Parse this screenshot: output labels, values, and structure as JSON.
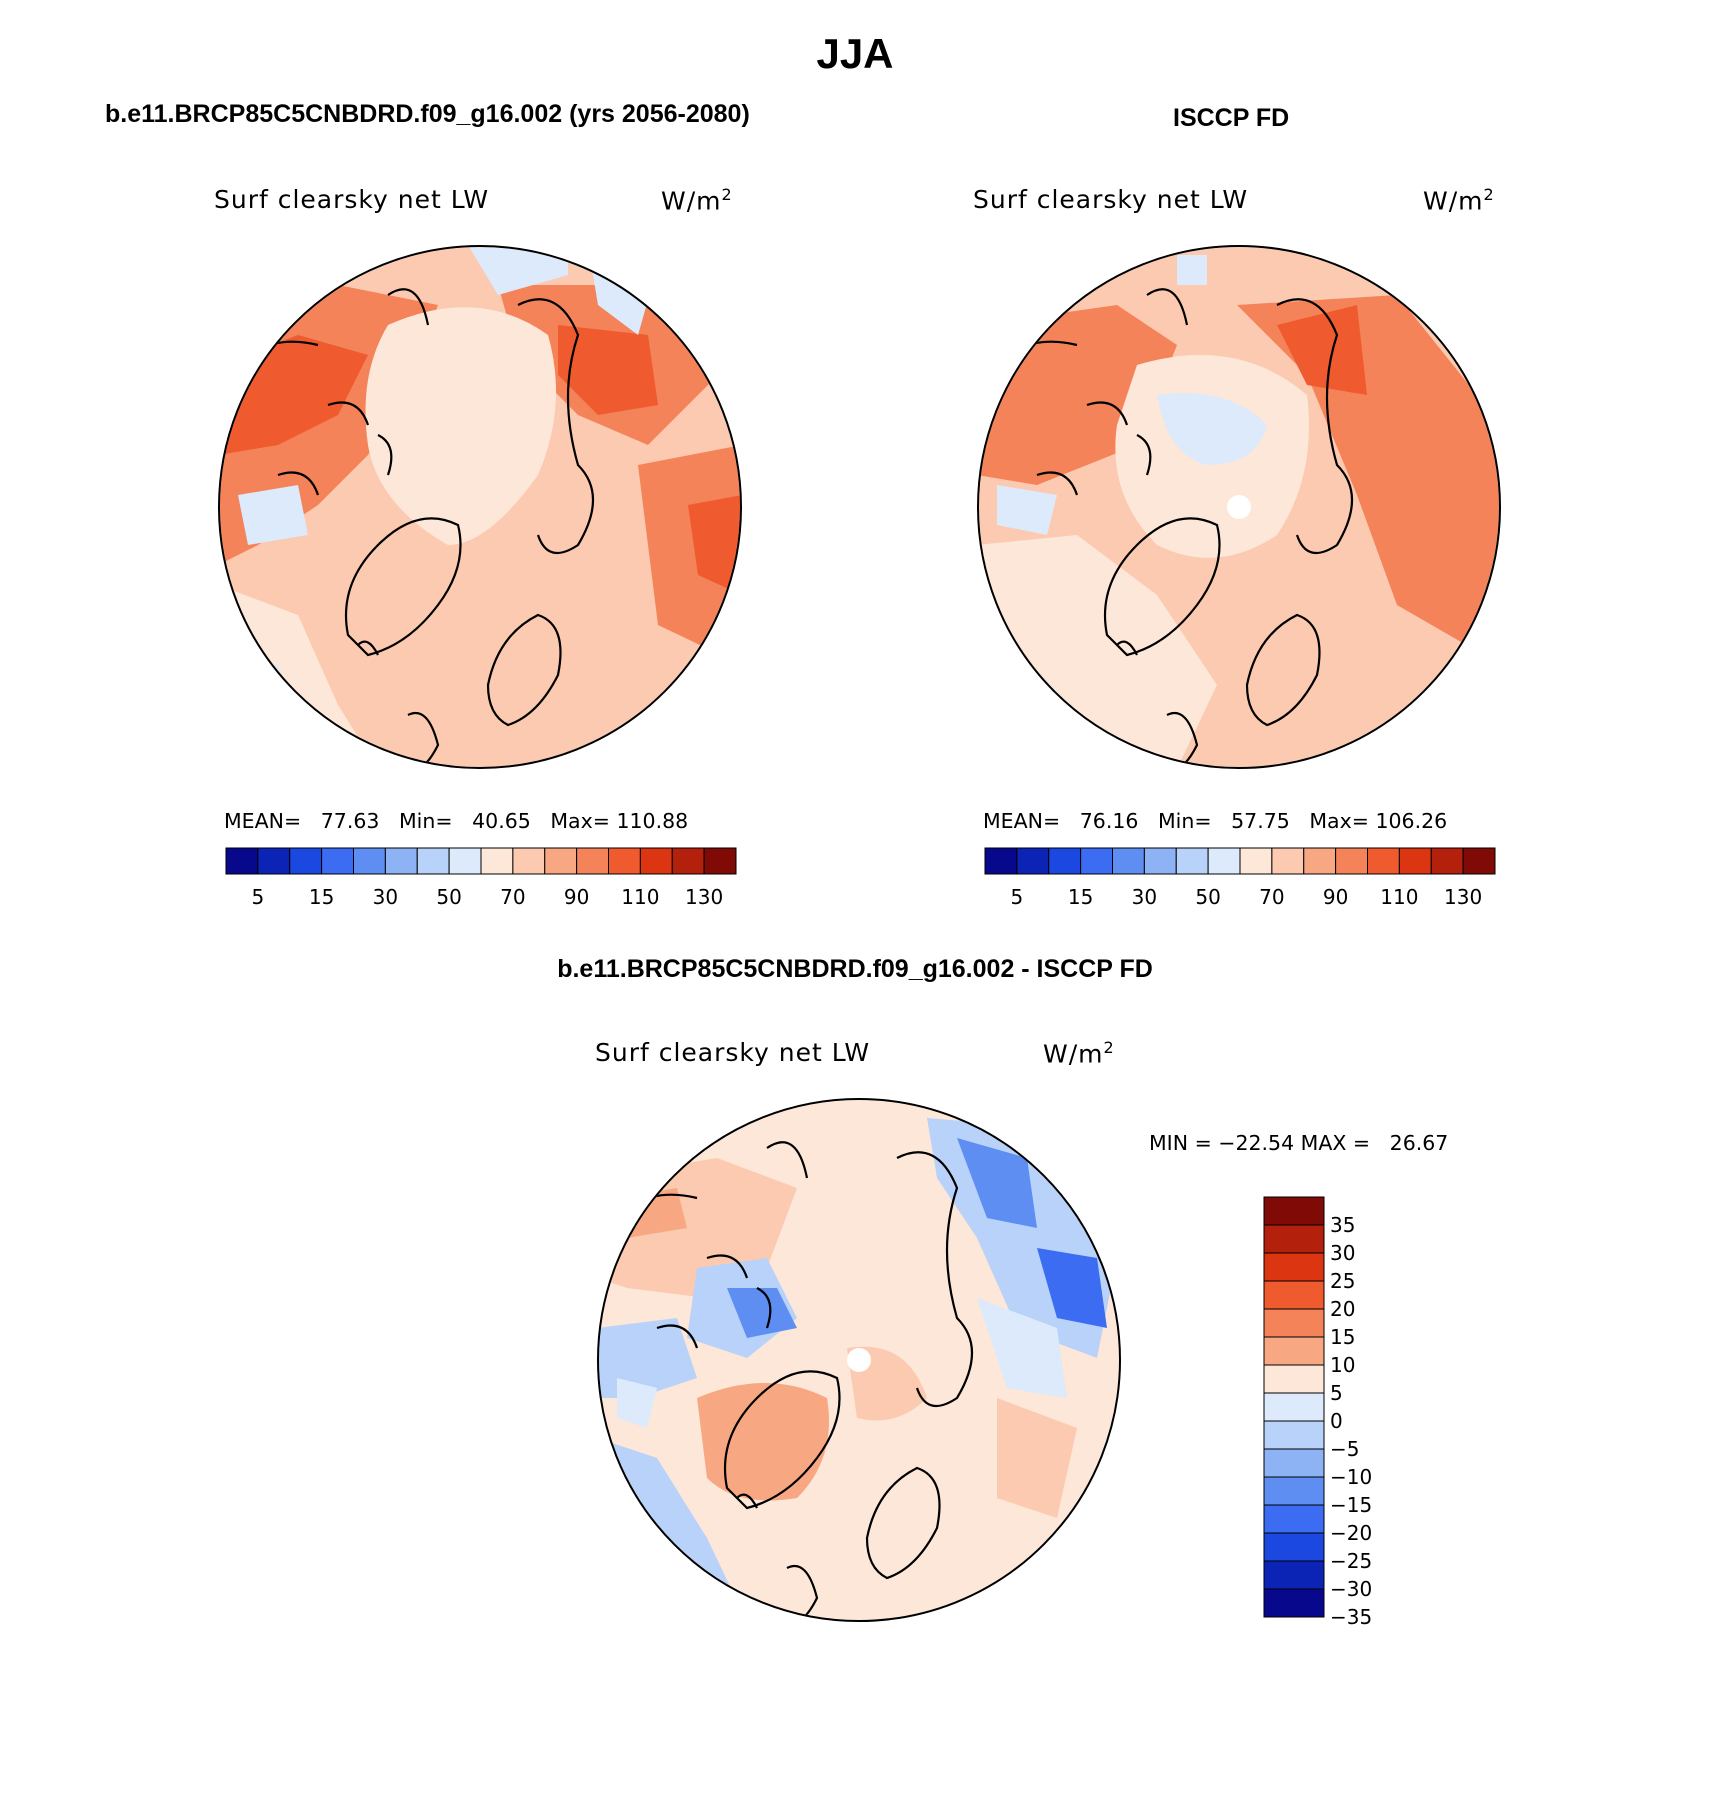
{
  "figure": {
    "season": "JJA",
    "panels": [
      {
        "id": "model",
        "title": "b.e11.BRCP85C5CNBDRD.f09_g16.002 (yrs 2056-2080)",
        "variable": "Surf clearsky net LW",
        "units": "W/m",
        "units_sup": "2",
        "mean_label": "MEAN=",
        "mean": "77.63",
        "min_label": "Min=",
        "min": "40.65",
        "max_label": "Max=",
        "max": "110.88",
        "colorbar_ticks": [
          "5",
          "15",
          "30",
          "50",
          "70",
          "90",
          "110",
          "130"
        ]
      },
      {
        "id": "obs",
        "title": "ISCCP FD",
        "variable": "Surf clearsky net LW",
        "units": "W/m",
        "units_sup": "2",
        "mean_label": "MEAN=",
        "mean": "76.16",
        "min_label": "Min=",
        "min": "57.75",
        "max_label": "Max=",
        "max": "106.26",
        "colorbar_ticks": [
          "5",
          "15",
          "30",
          "50",
          "70",
          "90",
          "110",
          "130"
        ]
      },
      {
        "id": "diff",
        "title": "b.e11.BRCP85C5CNBDRD.f09_g16.002 - ISCCP FD",
        "variable": "Surf clearsky net LW",
        "units": "W/m",
        "units_sup": "2",
        "minmax_text": "MIN = −22.54 MAX =   26.67",
        "colorbar_ticks": [
          "35",
          "30",
          "25",
          "20",
          "15",
          "10",
          "5",
          "0",
          "−5",
          "−10",
          "−15",
          "−20",
          "−25",
          "−30",
          "−35"
        ]
      }
    ]
  },
  "colors": {
    "abs_scale": [
      "#08088c",
      "#0b24b5",
      "#1a48e0",
      "#3b6cf2",
      "#5e8ef2",
      "#8db3f5",
      "#b9d2fa",
      "#dceafb",
      "#fde7d9",
      "#fbcab0",
      "#f7a883",
      "#f4835a",
      "#ef5a2e",
      "#db3512",
      "#b3200c",
      "#800b06"
    ],
    "diff_scale": [
      "#800b06",
      "#b3200c",
      "#db3512",
      "#ef5a2e",
      "#f4835a",
      "#f7a883",
      "#fde7d9",
      "#dceafb",
      "#b9d2fa",
      "#8db3f5",
      "#5e8ef2",
      "#3b6cf2",
      "#1a48e0",
      "#0b24b5",
      "#08088c"
    ]
  }
}
